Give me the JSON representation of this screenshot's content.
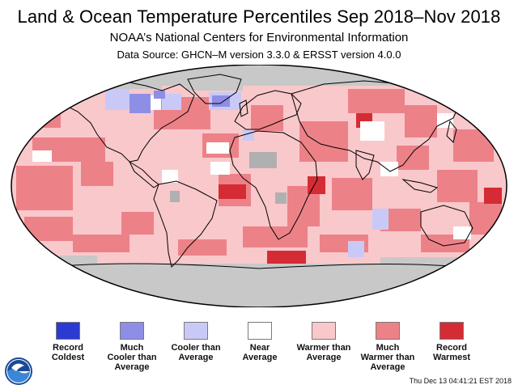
{
  "header": {
    "title": "Land & Ocean Temperature Percentiles Sep 2018–Nov 2018",
    "subtitle": "NOAA’s National Centers for Environmental Information",
    "source": "Data Source: GHCN–M version 3.3.0 & ERSST version 4.0.0"
  },
  "map": {
    "projection": "robinson",
    "no_data_color": "#c8c8c8",
    "ocean_base_category": "warmer_than_average"
  },
  "legend": [
    {
      "id": "record-coldest",
      "lines": [
        "Record",
        "Coldest"
      ],
      "color": "#2b3bd1"
    },
    {
      "id": "much-cooler",
      "lines": [
        "Much",
        "Cooler than",
        "Average"
      ],
      "color": "#8e8ee6"
    },
    {
      "id": "cooler",
      "lines": [
        "Cooler than",
        "Average"
      ],
      "color": "#c9c9f7"
    },
    {
      "id": "near",
      "lines": [
        "Near",
        "Average"
      ],
      "color": "#ffffff"
    },
    {
      "id": "warmer",
      "lines": [
        "Warmer than",
        "Average"
      ],
      "color": "#f9c8cb"
    },
    {
      "id": "much-warmer",
      "lines": [
        "Much",
        "Warmer than",
        "Average"
      ],
      "color": "#ec8288"
    },
    {
      "id": "record-warmest",
      "lines": [
        "Record",
        "Warmest"
      ],
      "color": "#d52b35"
    }
  ],
  "footer": {
    "timestamp": "Thu Dec 13 04:41:21 EST 2018",
    "logo": "noaa-logo"
  }
}
